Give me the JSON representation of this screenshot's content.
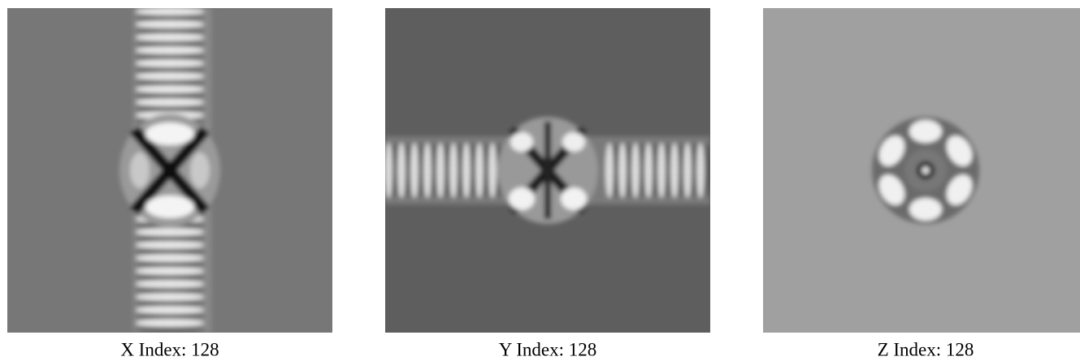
{
  "panels": [
    {
      "caption": "X Index: 128"
    },
    {
      "caption": "Y Index: 128"
    },
    {
      "caption": "Z Index: 128"
    }
  ]
}
